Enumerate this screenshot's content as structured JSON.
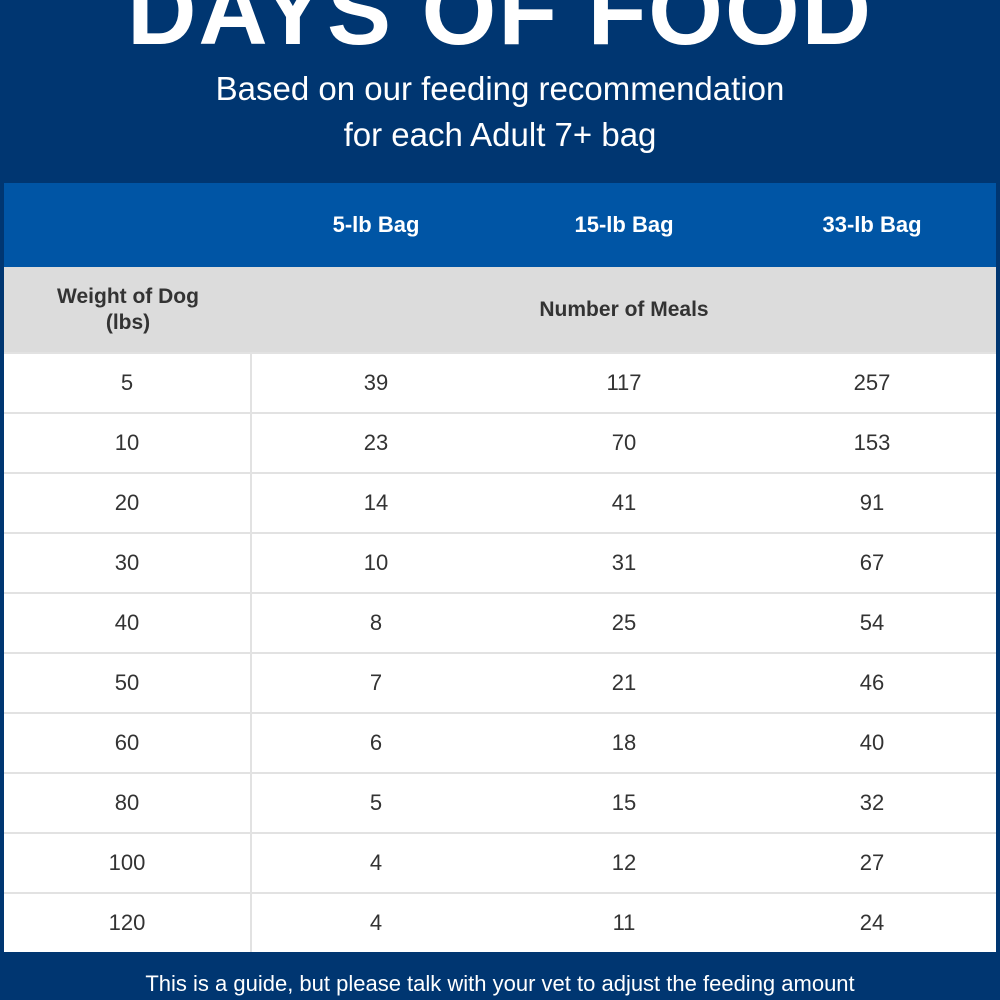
{
  "title": "DAYS OF FOOD",
  "subtitle_line1": "Based on our feeding recommendation",
  "subtitle_line2": "for each Adult 7+ bag",
  "columns": [
    "5-lb Bag",
    "15-lb Bag",
    "33-lb Bag"
  ],
  "weight_header_line1": "Weight of Dog",
  "weight_header_line2": "(lbs)",
  "meals_header": "Number of Meals",
  "rows": [
    [
      "5",
      "39",
      "117",
      "257"
    ],
    [
      "10",
      "23",
      "70",
      "153"
    ],
    [
      "20",
      "14",
      "41",
      "91"
    ],
    [
      "30",
      "10",
      "31",
      "67"
    ],
    [
      "40",
      "8",
      "25",
      "54"
    ],
    [
      "50",
      "7",
      "21",
      "46"
    ],
    [
      "60",
      "6",
      "18",
      "40"
    ],
    [
      "80",
      "5",
      "15",
      "32"
    ],
    [
      "100",
      "4",
      "12",
      "27"
    ],
    [
      "120",
      "4",
      "11",
      "24"
    ]
  ],
  "footer": "This is a guide, but please talk with your vet to adjust the feeding amount"
}
